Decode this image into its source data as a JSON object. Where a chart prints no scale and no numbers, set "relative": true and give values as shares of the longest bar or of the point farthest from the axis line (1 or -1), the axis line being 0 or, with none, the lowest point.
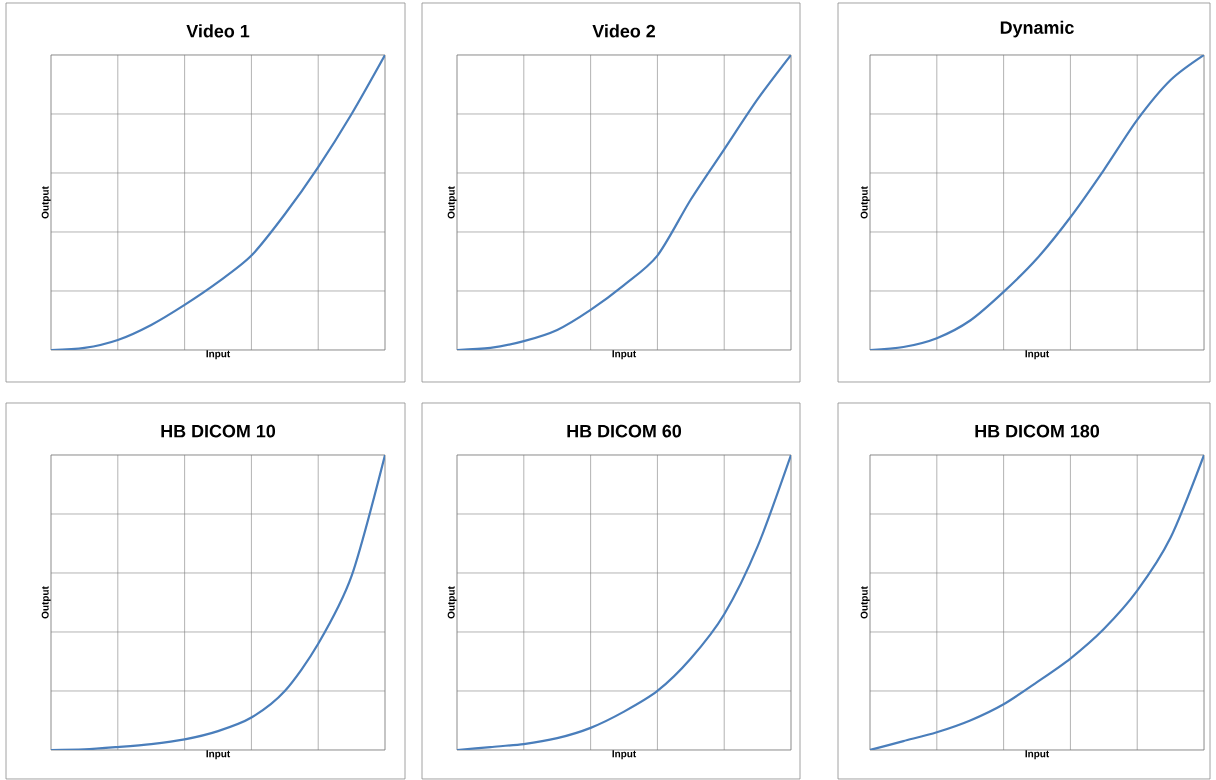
{
  "chart_data": [
    {
      "type": "line",
      "title": "Video 1",
      "xlabel": "Input",
      "ylabel": "Output",
      "categories": [
        null,
        null,
        null,
        null,
        null,
        null,
        null,
        null,
        null,
        null,
        null
      ],
      "values": [
        0,
        0.007,
        0.034,
        0.085,
        0.153,
        0.23,
        0.32,
        0.46,
        0.62,
        0.8,
        1
      ],
      "color": "#4a7ebb",
      "relative": true,
      "grid": true
    },
    {
      "type": "line",
      "title": "Video 2",
      "xlabel": "Input",
      "ylabel": "Output",
      "categories": [
        null,
        null,
        null,
        null,
        null,
        null,
        null,
        null,
        null,
        null,
        null
      ],
      "values": [
        0,
        0.007,
        0.03,
        0.068,
        0.136,
        0.22,
        0.32,
        0.51,
        0.68,
        0.85,
        1
      ],
      "color": "#4a7ebb",
      "relative": true,
      "grid": true
    },
    {
      "type": "line",
      "title": "Dynamic",
      "xlabel": "Input",
      "ylabel": "Output",
      "categories": [
        null,
        null,
        null,
        null,
        null,
        null,
        null,
        null,
        null,
        null,
        null
      ],
      "values": [
        0,
        0.01,
        0.04,
        0.1,
        0.197,
        0.31,
        0.45,
        0.61,
        0.78,
        0.915,
        1
      ],
      "color": "#4a7ebb",
      "relative": true,
      "grid": true
    },
    {
      "type": "line",
      "title": "HB DICOM 10",
      "xlabel": "Input",
      "ylabel": "Output",
      "categories": [
        null,
        null,
        null,
        null,
        null,
        null,
        null,
        null,
        null,
        null,
        null
      ],
      "values": [
        0,
        0.002,
        0.01,
        0.02,
        0.036,
        0.064,
        0.11,
        0.2,
        0.36,
        0.59,
        1
      ],
      "color": "#4a7ebb",
      "relative": true,
      "grid": true
    },
    {
      "type": "line",
      "title": "HB DICOM 60",
      "xlabel": "Input",
      "ylabel": "Output",
      "categories": [
        null,
        null,
        null,
        null,
        null,
        null,
        null,
        null,
        null,
        null,
        null
      ],
      "values": [
        0,
        0.01,
        0.02,
        0.04,
        0.075,
        0.13,
        0.2,
        0.31,
        0.46,
        0.69,
        1
      ],
      "color": "#4a7ebb",
      "relative": true,
      "grid": true
    },
    {
      "type": "line",
      "title": "HB DICOM 180",
      "xlabel": "Input",
      "ylabel": "Output",
      "categories": [
        null,
        null,
        null,
        null,
        null,
        null,
        null,
        null,
        null,
        null,
        null
      ],
      "values": [
        0,
        0.03,
        0.06,
        0.1,
        0.155,
        0.23,
        0.31,
        0.41,
        0.54,
        0.72,
        1
      ],
      "color": "#4a7ebb",
      "relative": true,
      "grid": true
    }
  ]
}
